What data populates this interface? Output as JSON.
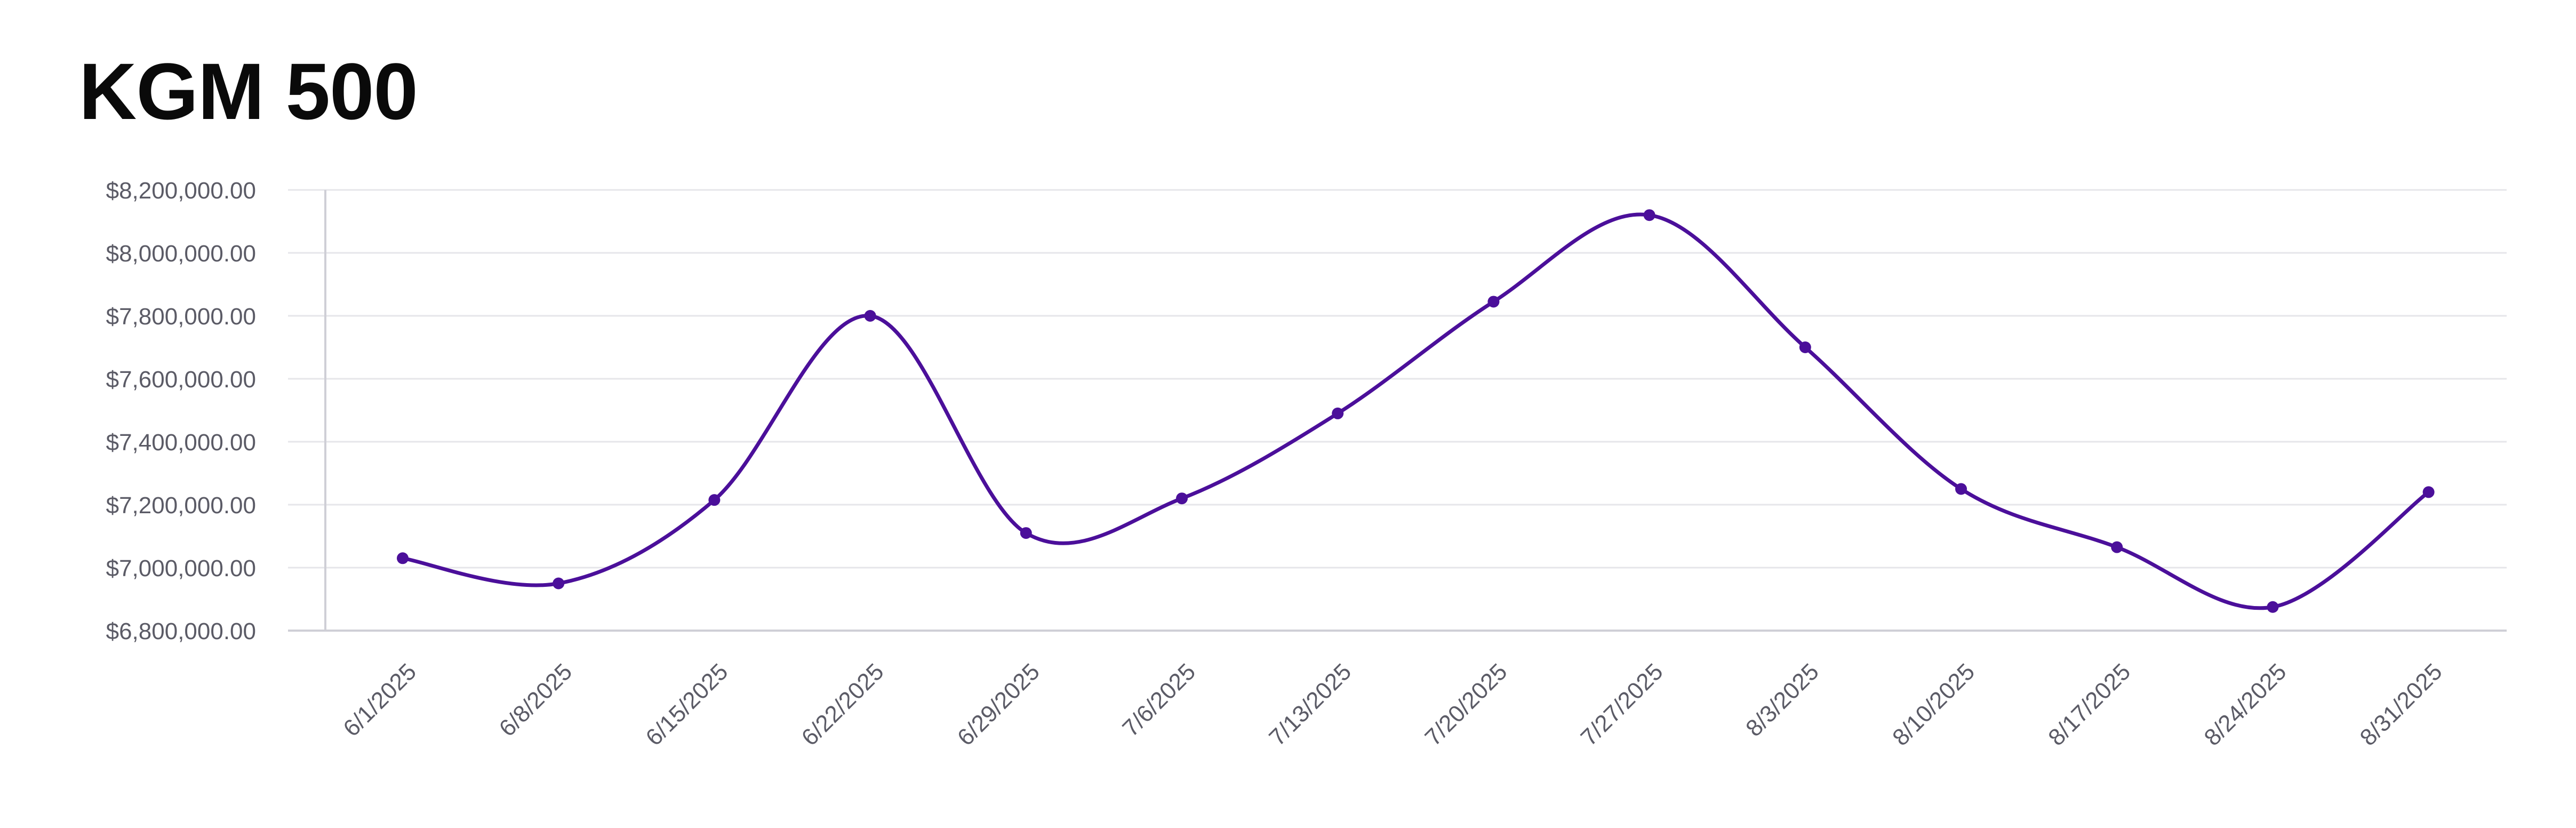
{
  "title": "KGM 500",
  "colors": {
    "line": "#4b0f9a",
    "point": "#4b0f9a",
    "grid": "#e6e6ea",
    "axis": "#cfcfd6",
    "tick_text": "#5b5b66",
    "title_text": "#0a0a0a"
  },
  "chart_data": {
    "type": "line",
    "title": "KGM 500",
    "xlabel": "",
    "ylabel": "",
    "smooth": true,
    "grid": "horizontal",
    "legend": "none",
    "ylim": [
      6800000,
      8200000
    ],
    "yticks": [
      6800000,
      7000000,
      7200000,
      7400000,
      7600000,
      7800000,
      8000000,
      8200000
    ],
    "ytick_labels": [
      "$6,800,000.00",
      "$7,000,000.00",
      "$7,200,000.00",
      "$7,400,000.00",
      "$7,600,000.00",
      "$7,800,000.00",
      "$8,000,000.00",
      "$8,200,000.00"
    ],
    "categories": [
      "6/1/2025",
      "6/8/2025",
      "6/15/2025",
      "6/22/2025",
      "6/29/2025",
      "7/6/2025",
      "7/13/2025",
      "7/20/2025",
      "7/27/2025",
      "8/3/2025",
      "8/10/2025",
      "8/17/2025",
      "8/24/2025",
      "8/31/2025"
    ],
    "series": [
      {
        "values": [
          7030000,
          6950000,
          7215000,
          7800000,
          7110000,
          7220000,
          7490000,
          7845000,
          8120000,
          7700000,
          7250000,
          7065000,
          6875000,
          7240000
        ]
      }
    ]
  }
}
